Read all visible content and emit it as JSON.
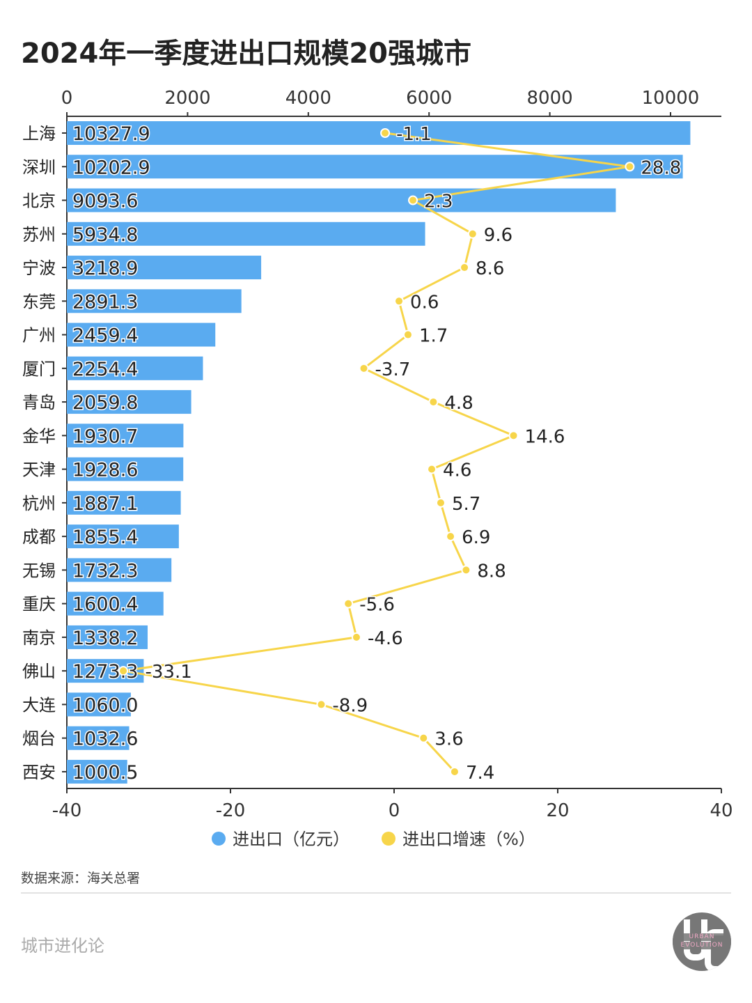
{
  "title": "2024年一季度进出口规模20强城市",
  "source": "数据来源：海关总署",
  "brand": "城市进化论",
  "logo": {
    "letters": "UC",
    "line1": "URBAN",
    "line2": "EVOLUTION"
  },
  "chart_data": {
    "type": "bar+line",
    "categories": [
      "上海",
      "深圳",
      "北京",
      "苏州",
      "宁波",
      "东莞",
      "广州",
      "厦门",
      "青岛",
      "金华",
      "天津",
      "杭州",
      "成都",
      "无锡",
      "重庆",
      "南京",
      "佛山",
      "大连",
      "烟台",
      "西安"
    ],
    "series": [
      {
        "name": "进出口（亿元）",
        "type": "bar",
        "axis": "top",
        "color": "#5aabf0",
        "values": [
          10327.9,
          10202.9,
          9093.6,
          5934.8,
          3218.9,
          2891.3,
          2459.4,
          2254.4,
          2059.8,
          1930.7,
          1928.6,
          1887.1,
          1855.4,
          1732.3,
          1600.4,
          1338.2,
          1273.3,
          1060.0,
          1032.6,
          1000.5
        ]
      },
      {
        "name": "进出口增速（%）",
        "type": "line",
        "axis": "bottom",
        "color": "#f7d54a",
        "values": [
          -1.1,
          28.8,
          2.3,
          9.6,
          8.6,
          0.6,
          1.7,
          -3.7,
          4.8,
          14.6,
          4.6,
          5.7,
          6.9,
          8.8,
          -5.6,
          -4.6,
          -33.1,
          -8.9,
          3.6,
          7.4
        ]
      }
    ],
    "top_axis": {
      "ticks": [
        "0",
        "2000",
        "4000",
        "6000",
        "8000",
        "10000"
      ],
      "range": [
        0,
        10850
      ]
    },
    "bottom_axis": {
      "ticks": [
        "-40",
        "-20",
        "0",
        "20",
        "40"
      ],
      "range": [
        -40,
        40
      ]
    },
    "legend_position": "bottom"
  }
}
